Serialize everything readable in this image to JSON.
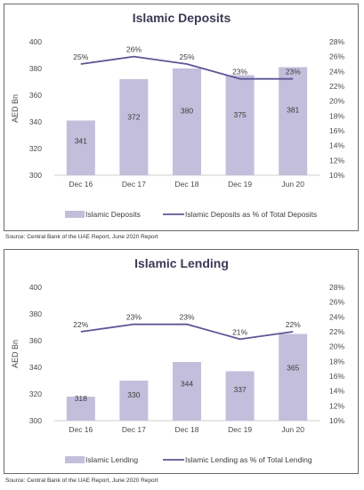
{
  "colors": {
    "bar": "#c3bedb",
    "line": "#5b5796",
    "title": "#3a3a55",
    "axis_text": "#4a4a4a",
    "grid": "#d9d9d9"
  },
  "charts": [
    {
      "source": "Source: Central Bank of the UAE Report, June 2020 Report"
    },
    {
      "source": "Source: Central Bank of the UAE Report, June 2020 Report"
    }
  ],
  "chart_data": [
    {
      "type": "bar",
      "title": "Islamic Deposits",
      "categories": [
        "Dec 16",
        "Dec 17",
        "Dec 18",
        "Dec 19",
        "Jun 20"
      ],
      "ylabel": "AED Bn",
      "ylim": [
        300,
        400
      ],
      "yticks": [
        "300",
        "320",
        "340",
        "360",
        "380",
        "400"
      ],
      "y2lim": [
        10,
        28
      ],
      "y2ticks": [
        "10%",
        "12%",
        "14%",
        "16%",
        "18%",
        "20%",
        "22%",
        "24%",
        "26%",
        "28%"
      ],
      "grid": false,
      "legend_position": "bottom",
      "series": [
        {
          "name": "Islamic Deposits",
          "kind": "bar",
          "axis": "left",
          "values": [
            341,
            372,
            380,
            375,
            381
          ],
          "labels": [
            "341",
            "372",
            "380",
            "375",
            "381"
          ]
        },
        {
          "name": "Islamic Deposits as % of Total Deposits",
          "kind": "line",
          "axis": "right",
          "values": [
            25,
            26,
            25,
            23,
            23
          ],
          "labels": [
            "25%",
            "26%",
            "25%",
            "23%",
            "23%"
          ]
        }
      ]
    },
    {
      "type": "bar",
      "title": "Islamic Lending",
      "categories": [
        "Dec 16",
        "Dec 17",
        "Dec 18",
        "Dec 19",
        "Jun 20"
      ],
      "ylabel": "AED Bn",
      "ylim": [
        300,
        400
      ],
      "yticks": [
        "300",
        "320",
        "340",
        "360",
        "380",
        "400"
      ],
      "y2lim": [
        10,
        28
      ],
      "y2ticks": [
        "10%",
        "12%",
        "14%",
        "16%",
        "18%",
        "20%",
        "22%",
        "24%",
        "26%",
        "28%"
      ],
      "grid": false,
      "legend_position": "bottom",
      "series": [
        {
          "name": "Islamic Lending",
          "kind": "bar",
          "axis": "left",
          "values": [
            318,
            330,
            344,
            337,
            365
          ],
          "labels": [
            "318",
            "330",
            "344",
            "337",
            "365"
          ]
        },
        {
          "name": "Islamic Lending as % of Total Lending",
          "kind": "line",
          "axis": "right",
          "values": [
            22,
            23,
            23,
            21,
            22
          ],
          "labels": [
            "22%",
            "23%",
            "23%",
            "21%",
            "22%"
          ]
        }
      ]
    }
  ]
}
